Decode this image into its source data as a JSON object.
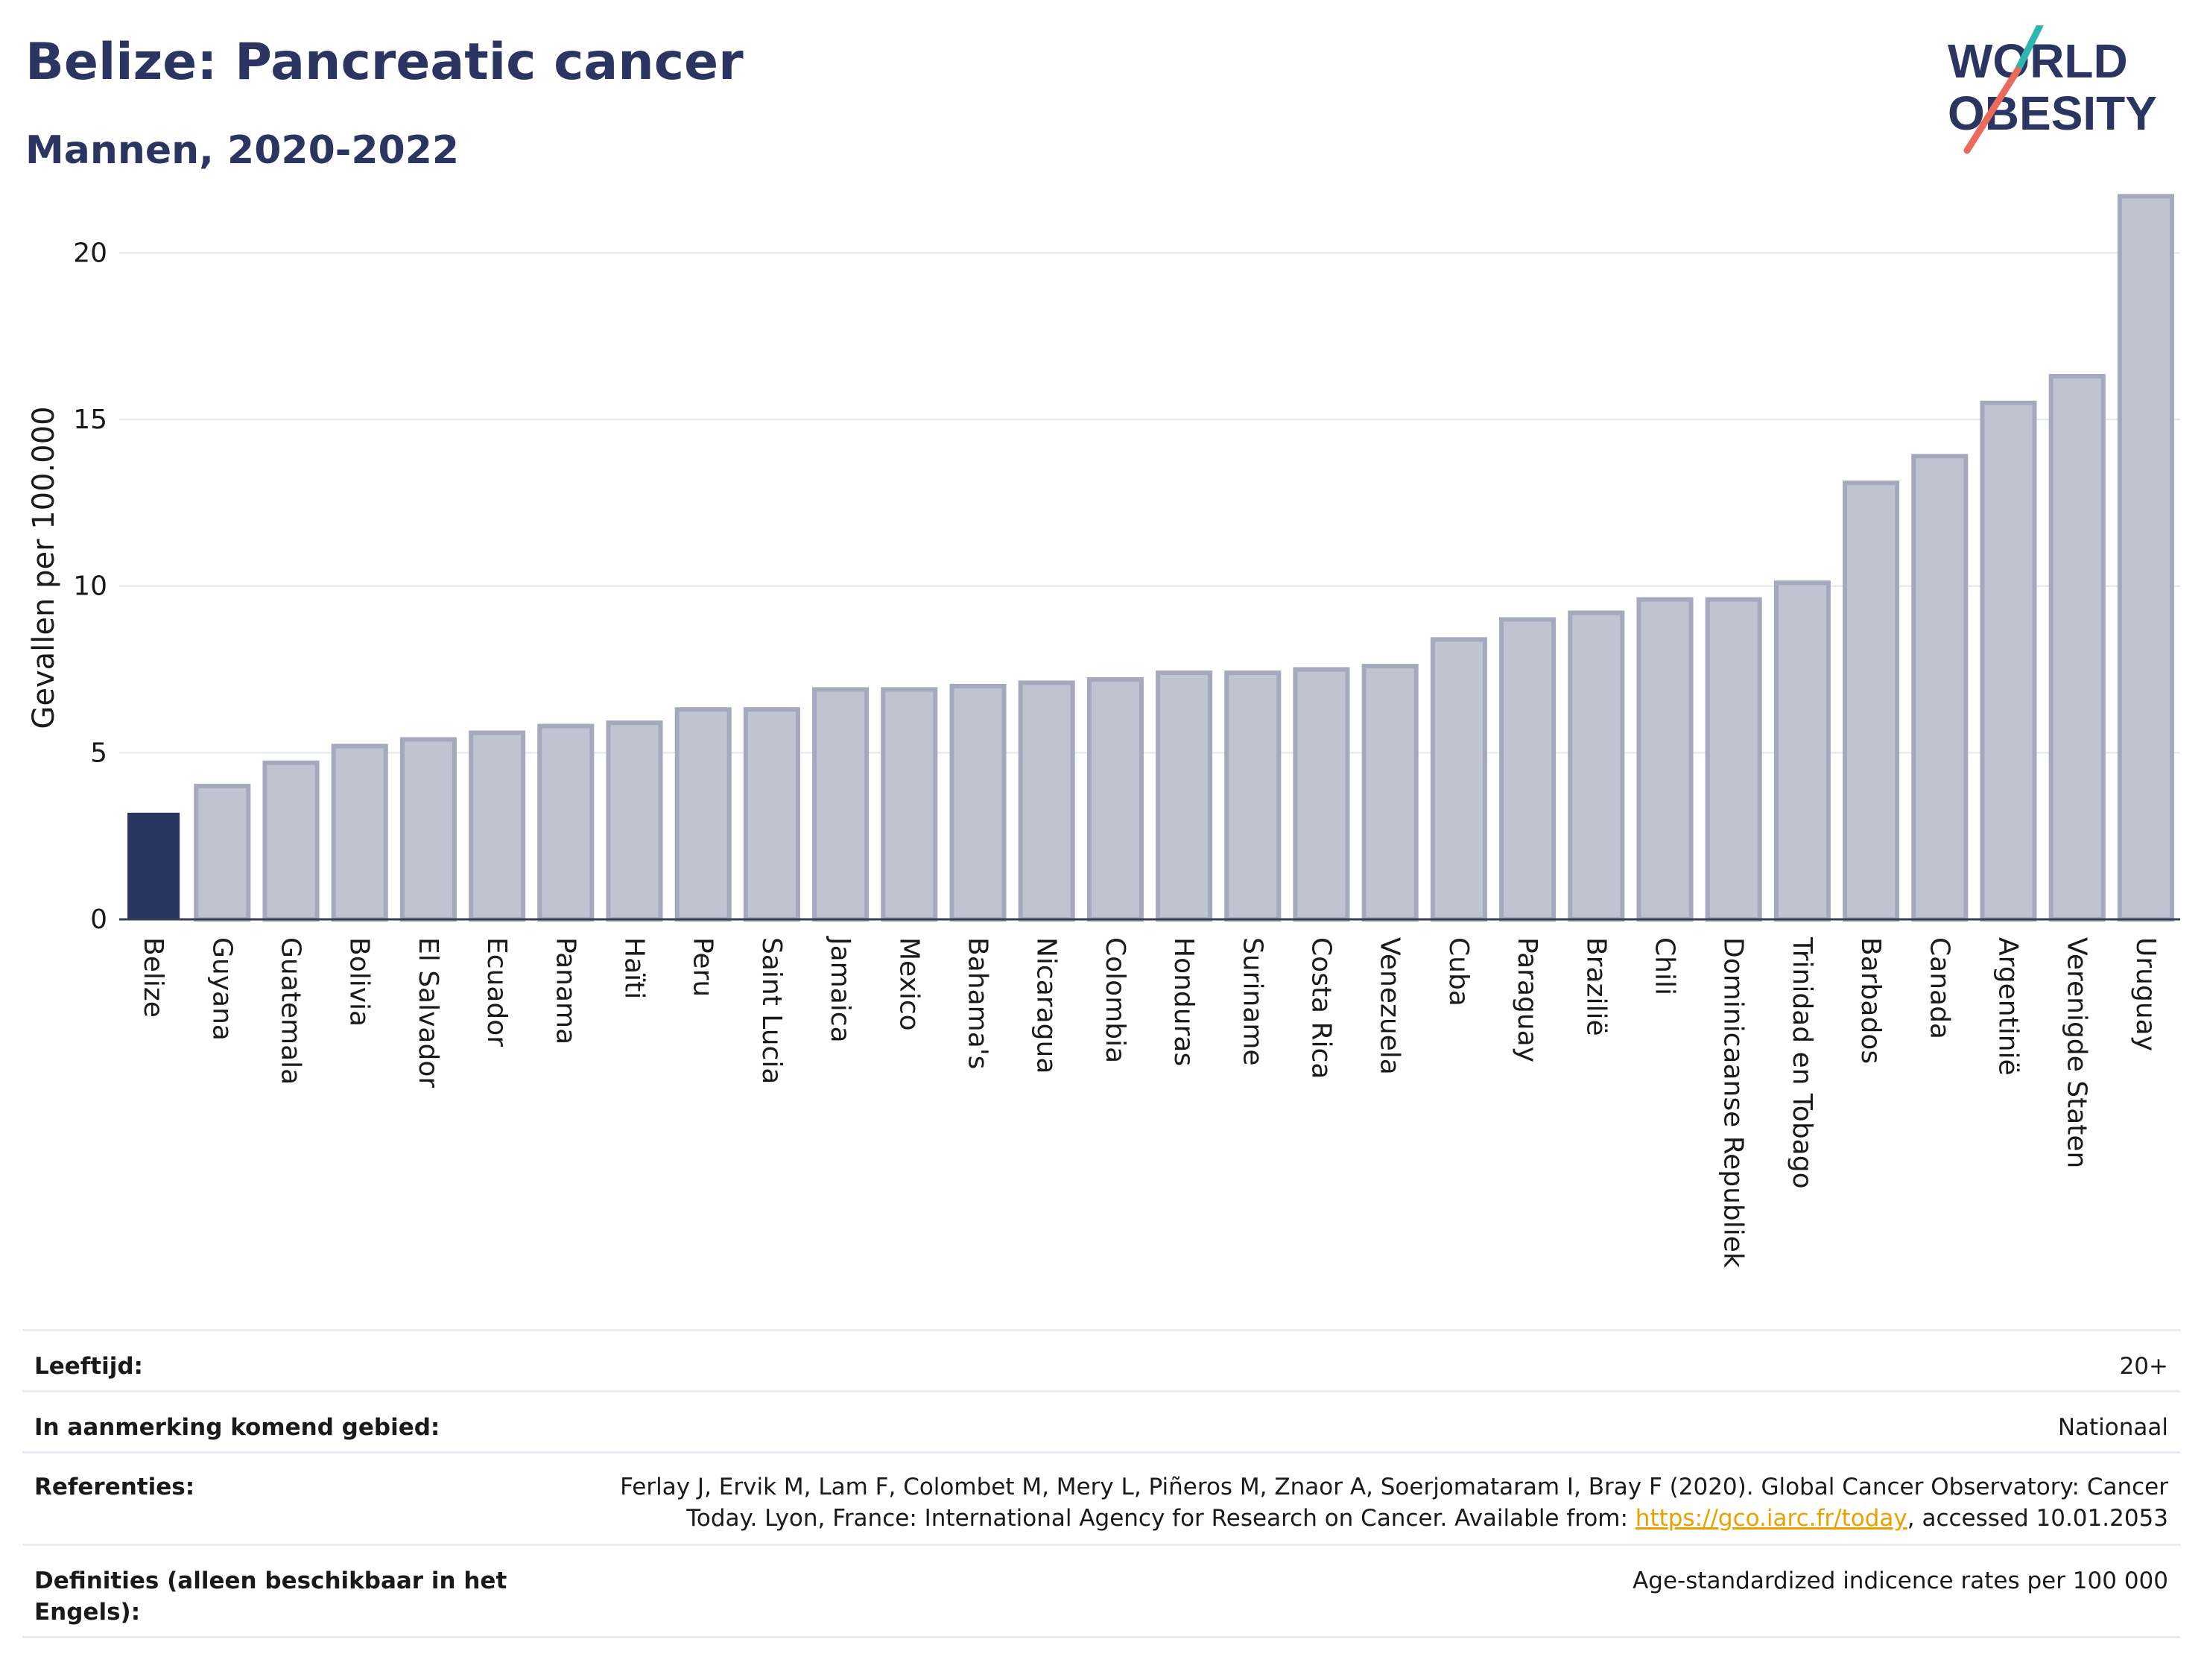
{
  "title": "Belize: Pancreatic cancer",
  "subtitle": "Mannen, 2020-2022",
  "logo": {
    "line1": "WORLD",
    "line2": "OBESITY"
  },
  "chart_data": {
    "type": "bar",
    "ylabel": "Gevallen per 100.000",
    "ylim": [
      0,
      22
    ],
    "yticks": [
      0,
      5,
      10,
      15,
      20
    ],
    "grid": true,
    "categories": [
      "Belize",
      "Guyana",
      "Guatemala",
      "Bolivia",
      "El Salvador",
      "Ecuador",
      "Panama",
      "Haïti",
      "Peru",
      "Saint Lucia",
      "Jamaica",
      "Mexico",
      "Bahama's",
      "Nicaragua",
      "Colombia",
      "Honduras",
      "Suriname",
      "Costa Rica",
      "Venezuela",
      "Cuba",
      "Paraguay",
      "Brazilië",
      "Chili",
      "Dominicaanse Republiek",
      "Trinidad en Tobago",
      "Barbados",
      "Canada",
      "Argentinië",
      "Verenigde Staten",
      "Uruguay"
    ],
    "values": [
      3.2,
      4.0,
      4.7,
      5.2,
      5.4,
      5.6,
      5.8,
      5.9,
      6.3,
      6.3,
      6.9,
      6.9,
      7.0,
      7.1,
      7.2,
      7.4,
      7.4,
      7.5,
      7.6,
      8.4,
      9.0,
      9.2,
      9.6,
      9.6,
      10.1,
      13.1,
      13.9,
      15.5,
      16.3,
      21.7
    ],
    "highlight": "Belize",
    "colors": {
      "highlight": "#2b3561",
      "other_fill": "#c0c3d0",
      "other_stroke": "#a4a9be"
    }
  },
  "info": {
    "age_label": "Leeftijd:",
    "age_value": "20+",
    "area_label": "In aanmerking komend gebied:",
    "area_value": "Nationaal",
    "ref_label": "Referenties:",
    "ref_text_1": "Ferlay J, Ervik M, Lam F, Colombet M, Mery L, Piñeros M, Znaor A, Soerjomataram I, Bray F (2020). Global Cancer Observatory: Cancer Today. Lyon, France: International Agency for Research on Cancer. Available from: ",
    "ref_link": "https://gco.iarc.fr/today",
    "ref_text_2": ", accessed 10.01.2053",
    "def_label": "Definities (alleen beschikbaar in het Engels):",
    "def_value": "Age-standardized indicence rates per 100 000"
  }
}
